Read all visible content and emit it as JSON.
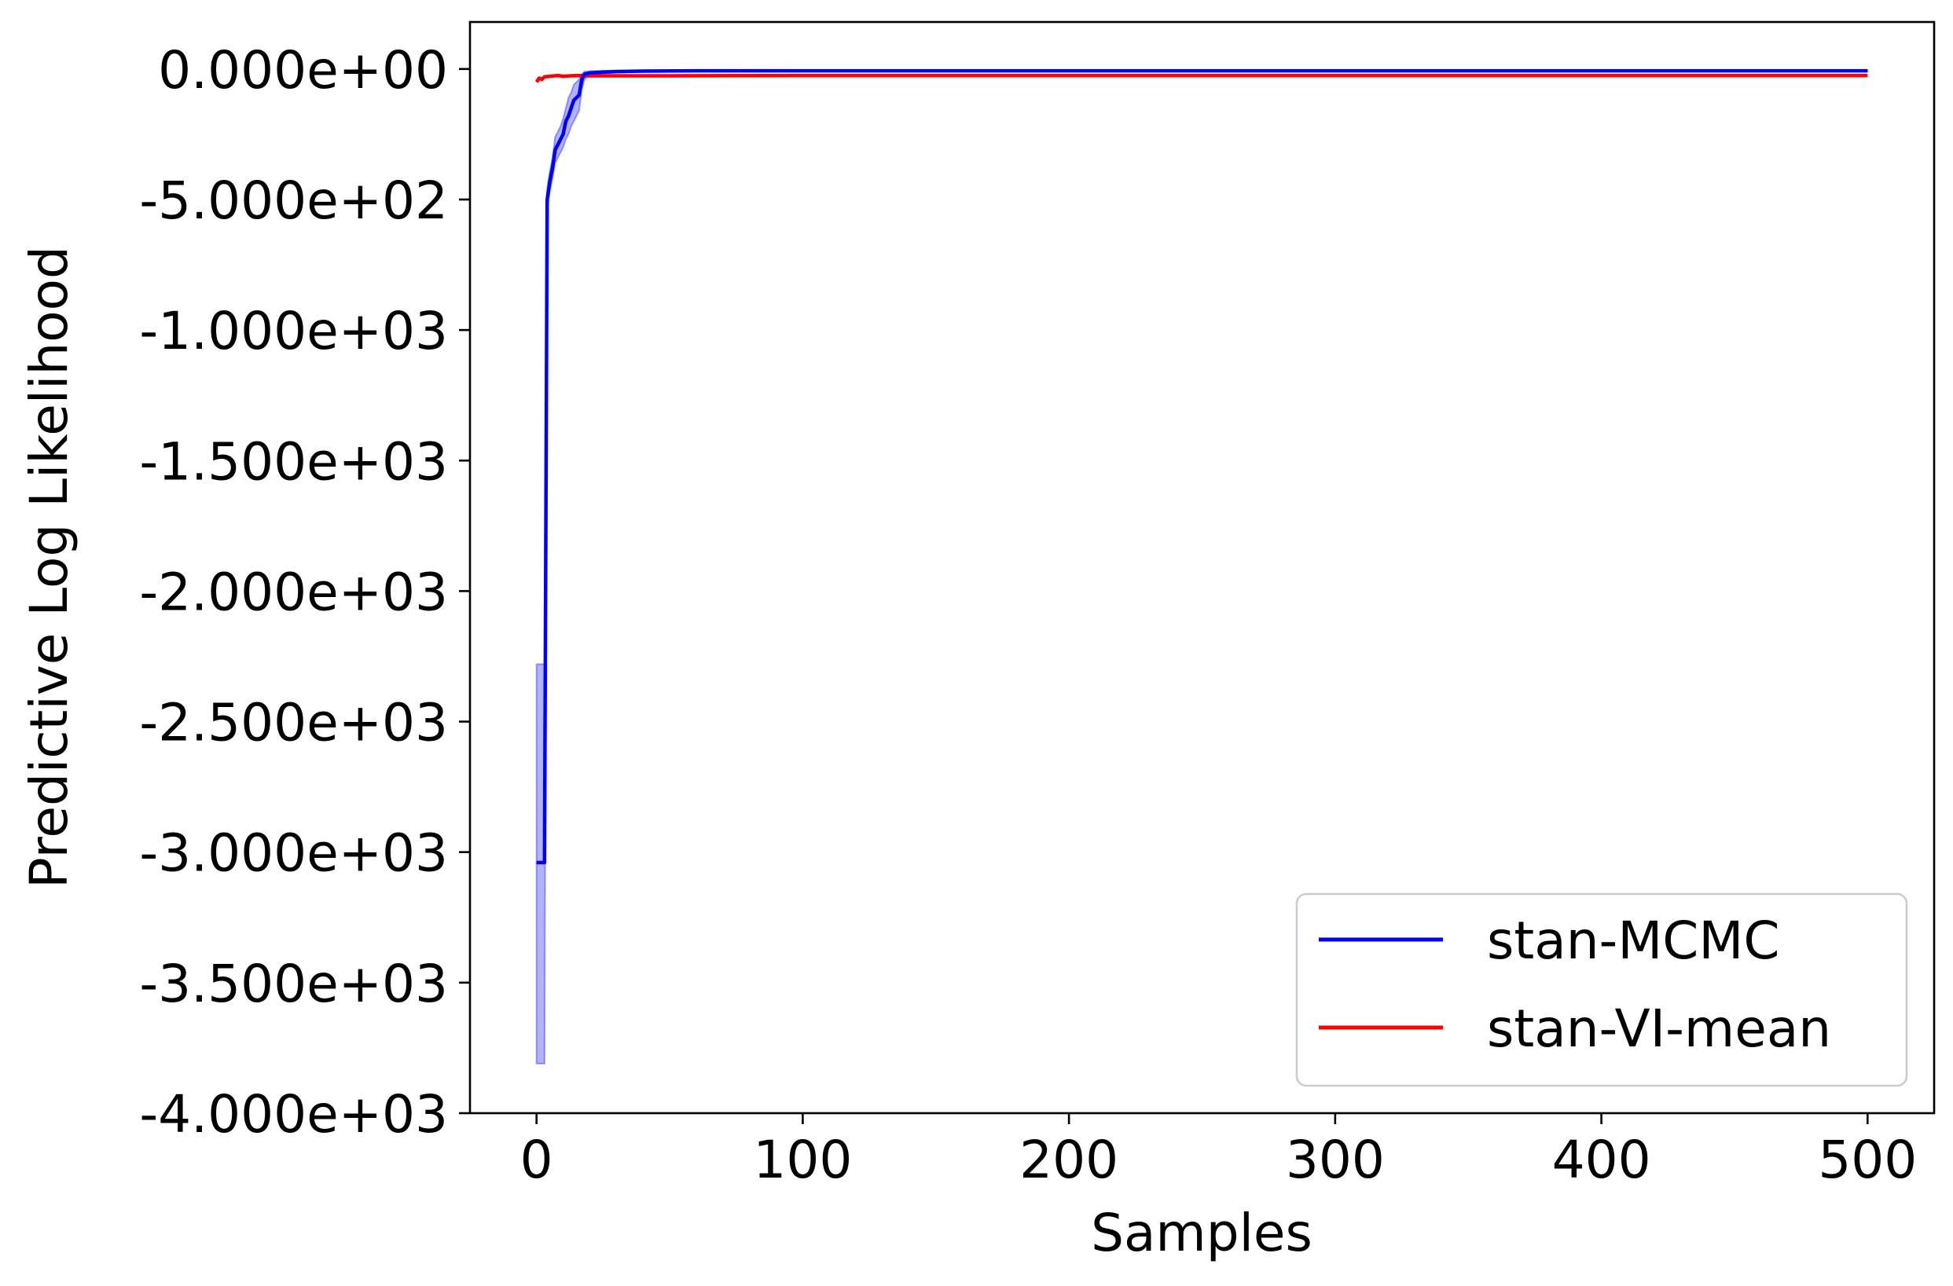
{
  "chart_data": {
    "type": "line",
    "title": "",
    "xlabel": "Samples",
    "ylabel": "Predictive Log Likelihood",
    "xlim": [
      -25,
      525
    ],
    "ylim": [
      -4000,
      180
    ],
    "xticks": [
      0,
      100,
      200,
      300,
      400,
      500
    ],
    "xtick_labels": [
      "0",
      "100",
      "200",
      "300",
      "400",
      "500"
    ],
    "yticks": [
      0,
      -500,
      -1000,
      -1500,
      -2000,
      -2500,
      -3000,
      -3500,
      -4000
    ],
    "ytick_labels": [
      "0.000e+00",
      "-5.000e+02",
      "-1.000e+03",
      "-1.500e+03",
      "-2.000e+03",
      "-2.500e+03",
      "-3.000e+03",
      "-3.500e+03",
      "-4.000e+03"
    ],
    "grid": false,
    "legend_position": "lower right",
    "series": [
      {
        "name": "stan-MCMC",
        "color": "#0000ff",
        "band_color": "#0000ff",
        "x": [
          0,
          1,
          2,
          3,
          4,
          5,
          6,
          7,
          8,
          9,
          10,
          11,
          12,
          13,
          14,
          15,
          16,
          17,
          18,
          20,
          25,
          30,
          40,
          60,
          100,
          200,
          300,
          400,
          500
        ],
        "values": [
          -3040,
          -3040,
          -3040,
          -3040,
          -500,
          -430,
          -380,
          -310,
          -290,
          -270,
          -250,
          -200,
          -180,
          -150,
          -120,
          -110,
          -100,
          -40,
          -20,
          -15,
          -12,
          -10,
          -8,
          -7,
          -7,
          -7,
          -7,
          -7,
          -7
        ],
        "lower": [
          -3810,
          -3810,
          -3810,
          -3810,
          -540,
          -470,
          -420,
          -360,
          -340,
          -320,
          -300,
          -270,
          -250,
          -220,
          -200,
          -180,
          -160,
          -80,
          -40,
          -25,
          -18,
          -14,
          -10,
          -8,
          -8,
          -8,
          -8,
          -8,
          -8
        ],
        "upper": [
          -2280,
          -2280,
          -2280,
          -2280,
          -460,
          -390,
          -340,
          -260,
          -240,
          -220,
          -190,
          -150,
          -110,
          -90,
          -60,
          -50,
          -40,
          -20,
          -10,
          -8,
          -7,
          -6,
          -6,
          -6,
          -6,
          -6,
          -6,
          -6,
          -6
        ]
      },
      {
        "name": "stan-VI-mean",
        "color": "#ff0000",
        "x": [
          0,
          1,
          2,
          3,
          5,
          8,
          10,
          15,
          20,
          50,
          100,
          200,
          300,
          400,
          500
        ],
        "values": [
          -50,
          -35,
          -40,
          -30,
          -28,
          -25,
          -28,
          -25,
          -26,
          -26,
          -25,
          -25,
          -25,
          -25,
          -25
        ]
      }
    ]
  }
}
